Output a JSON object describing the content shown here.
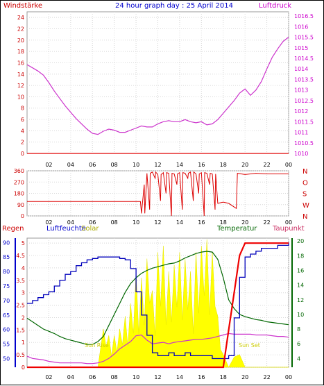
{
  "title": "24 hour graph day : 25 April 2014",
  "colors": {
    "wind": "#e00000",
    "pressure": "#cc33cc",
    "winddir": "#dd0000",
    "humidity": "#0000bb",
    "solar": "#ffff00",
    "temperature": "#006600",
    "dewpoint": "#cc33cc",
    "rain": "#ee0000",
    "grid": "#d8d8d8",
    "axis_red": "#cc0000",
    "axis_purple": "#cc00cc",
    "axis_blue": "#0000cc",
    "axis_green": "#006600"
  },
  "x_ticks": [
    "02",
    "04",
    "06",
    "08",
    "10",
    "12",
    "14",
    "16",
    "18",
    "20",
    "22",
    "00"
  ],
  "chart_data": [
    {
      "type": "line",
      "name": "pressure_wind",
      "left_label": "Windstärke",
      "right_label": "Luftdruck",
      "left_ticks": [
        0,
        2,
        4,
        6,
        8,
        10,
        12,
        14,
        16,
        18,
        20,
        22,
        24
      ],
      "right_ticks": [
        "1010",
        "1010.5",
        "1011",
        "1011.5",
        "1012",
        "1012.5",
        "1013",
        "1013.5",
        "1014",
        "1014.5",
        "1015",
        "1015.5",
        "1016",
        "1016.5"
      ],
      "ylim_left": [
        0,
        25
      ],
      "ylim_right": [
        1010,
        1016.7
      ],
      "x_hours": [
        0,
        0.5,
        1,
        1.5,
        2,
        2.5,
        3,
        3.5,
        4,
        4.5,
        5,
        5.5,
        6,
        6.5,
        7,
        7.5,
        8,
        8.5,
        9,
        9.5,
        10,
        10.5,
        11,
        11.5,
        12,
        12.5,
        13,
        13.5,
        14,
        14.5,
        15,
        15.5,
        16,
        16.5,
        17,
        17.5,
        18,
        18.5,
        19,
        19.5,
        20,
        20.5,
        21,
        21.5,
        22,
        22.5,
        23,
        23.5,
        24
      ],
      "series": [
        {
          "values": [
            1014.2,
            1014.05,
            1013.9,
            1013.7,
            1013.35,
            1012.95,
            1012.6,
            1012.25,
            1011.95,
            1011.65,
            1011.4,
            1011.15,
            1010.95,
            1010.9,
            1011.05,
            1011.15,
            1011.1,
            1011.0,
            1011.0,
            1011.1,
            1011.2,
            1011.3,
            1011.25,
            1011.25,
            1011.4,
            1011.5,
            1011.55,
            1011.5,
            1011.5,
            1011.6,
            1011.5,
            1011.45,
            1011.5,
            1011.35,
            1011.4,
            1011.6,
            1011.9,
            1012.2,
            1012.5,
            1012.85,
            1013.05,
            1012.75,
            1013.0,
            1013.4,
            1014.0,
            1014.55,
            1014.95,
            1015.3,
            1015.5
          ]
        },
        {
          "values": [
            0,
            0,
            0,
            0,
            0,
            0,
            0,
            0,
            0,
            0,
            0,
            0,
            0,
            0,
            0,
            0,
            0,
            0,
            0,
            0,
            0,
            0,
            0,
            0,
            0,
            0,
            0,
            0,
            0,
            0,
            0,
            0,
            0,
            0,
            0,
            0,
            0,
            0,
            0,
            0,
            0,
            0,
            0,
            0,
            0,
            0,
            0,
            0,
            0
          ]
        }
      ]
    },
    {
      "type": "line",
      "name": "wind_direction",
      "left_ticks": [
        0,
        90,
        180,
        270,
        360
      ],
      "right_ticks": [
        "N",
        "W",
        "S",
        "O",
        "N"
      ],
      "ylim": [
        0,
        360
      ],
      "x_hours": [
        0,
        10.4,
        10.5,
        11.0,
        11.5,
        12.0,
        12.5,
        13.0,
        13.5,
        14.0,
        14.5,
        15.0,
        15.5,
        16.0,
        16.5,
        17.0,
        17.5,
        18.0,
        18.5,
        19.2,
        19.3,
        20.0,
        21.0,
        22.0,
        23.0,
        24.0
      ],
      "series": [
        {
          "values": [
            115,
            115,
            20,
            340,
            350,
            330,
            345,
            340,
            335,
            345,
            340,
            350,
            335,
            345,
            340,
            335,
            100,
            110,
            100,
            60,
            340,
            330,
            340,
            335,
            335,
            335
          ]
        }
      ]
    },
    {
      "type": "area",
      "name": "solar_humidity_temperature",
      "left_label": "Regen",
      "left_label2": "Luftfeuchte",
      "solar_label": "Solar",
      "temp_label": "Temperatur",
      "dew_label": "Taupunkt",
      "sunrise_label": "Sun Rise",
      "sunset_label": "Sun Set",
      "rain_ticks": [
        "0",
        "0.5",
        "1",
        "1.5",
        "2",
        "2.5",
        "3",
        "3.5",
        "4",
        "4.5",
        "5"
      ],
      "humidity_ticks": [
        50,
        55,
        60,
        65,
        70,
        75,
        80,
        85,
        90
      ],
      "temp_ticks": [
        4,
        6,
        8,
        10,
        12,
        14,
        16,
        18,
        20
      ],
      "rain_lim": [
        0,
        5.2
      ],
      "humidity_lim": [
        47,
        91.5
      ],
      "temp_lim": [
        2.8,
        20.4
      ],
      "x_hours": [
        0,
        0.5,
        1,
        1.5,
        2,
        2.5,
        3,
        3.5,
        4,
        4.5,
        5,
        5.5,
        6,
        6.5,
        7,
        7.5,
        8,
        8.5,
        9,
        9.5,
        10,
        10.5,
        11,
        11.5,
        12,
        12.5,
        13,
        13.5,
        14,
        14.5,
        15,
        15.5,
        16,
        16.5,
        17,
        17.5,
        18,
        18.5,
        19,
        19.5,
        20,
        20.5,
        21,
        21.5,
        22,
        22.5,
        23,
        23.5,
        24
      ],
      "series": [
        {
          "name": "humidity",
          "values": [
            69,
            70,
            71,
            72,
            73,
            75,
            77,
            79,
            80,
            82,
            83,
            84,
            84.5,
            85,
            85,
            85,
            85,
            84.5,
            84,
            81,
            73,
            65,
            58,
            52,
            51,
            51,
            52,
            51,
            51,
            52,
            51,
            51,
            51,
            51,
            50,
            50,
            50,
            51,
            64,
            78,
            85,
            86,
            87,
            88,
            88,
            88,
            89,
            89,
            90
          ]
        },
        {
          "name": "temperature",
          "values": [
            9.5,
            9.0,
            8.5,
            8.0,
            7.7,
            7.4,
            7.0,
            6.7,
            6.5,
            6.3,
            6.1,
            5.9,
            5.9,
            6.3,
            7.0,
            8.5,
            10.0,
            11.5,
            13.0,
            14.2,
            15.0,
            15.6,
            16.0,
            16.3,
            16.5,
            16.7,
            16.9,
            17.0,
            17.3,
            17.7,
            18.0,
            18.3,
            18.5,
            18.6,
            18.5,
            17.5,
            15.0,
            12.0,
            10.8,
            10.0,
            9.7,
            9.5,
            9.3,
            9.2,
            9.0,
            8.9,
            8.8,
            8.7,
            8.6
          ]
        },
        {
          "name": "dewpoint",
          "values": [
            4.3,
            4.0,
            3.9,
            3.8,
            3.6,
            3.5,
            3.4,
            3.4,
            3.4,
            3.4,
            3.4,
            3.3,
            3.3,
            3.4,
            3.6,
            4.0,
            4.6,
            5.3,
            5.8,
            6.3,
            7.1,
            7.2,
            6.5,
            6.0,
            6.1,
            6.2,
            6.0,
            6.2,
            6.3,
            6.4,
            6.5,
            6.6,
            6.6,
            6.7,
            6.8,
            7.0,
            7.2,
            7.4,
            7.3,
            7.3,
            7.3,
            7.3,
            7.2,
            7.2,
            7.2,
            7.1,
            7.0,
            7.0,
            6.9
          ]
        },
        {
          "name": "solar_frac",
          "values": [
            0,
            0,
            0,
            0,
            0,
            0,
            0,
            0,
            0,
            0,
            0,
            0,
            0,
            0,
            0.3,
            0.25,
            0.25,
            0.3,
            0.4,
            0.5,
            0.75,
            0.7,
            0.85,
            0.6,
            0.9,
            0.95,
            0.75,
            0.8,
            0.9,
            0.85,
            0.75,
            0.9,
            0.95,
            1.0,
            0.9,
            0.4,
            0.1,
            0,
            0.08,
            0.1,
            0,
            0,
            0,
            0,
            0,
            0,
            0,
            0,
            0
          ]
        },
        {
          "name": "rain",
          "values": [
            0,
            0,
            0,
            0,
            0,
            0,
            0,
            0,
            0,
            0,
            0,
            0,
            0,
            0,
            0,
            0,
            0,
            0,
            0,
            0,
            0,
            0,
            0,
            0,
            0,
            0,
            0,
            0,
            0,
            0,
            0,
            0,
            0,
            0,
            0,
            0,
            0,
            1.5,
            3.0,
            4.5,
            5.0,
            5.0,
            5.0,
            5.0,
            5.0,
            5.0,
            5.0,
            5.0,
            5.0
          ]
        }
      ]
    }
  ]
}
